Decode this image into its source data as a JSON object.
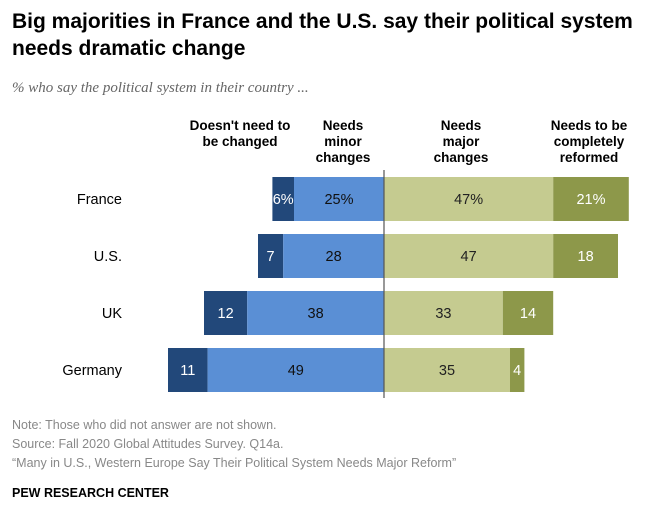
{
  "title": "Big majorities in France and the U.S. say their political system needs dramatic change",
  "subtitle": "% who say the political system in their country ...",
  "chart_data": {
    "type": "bar",
    "orientation": "horizontal-diverging-stacked",
    "categories": [
      "France",
      "U.S.",
      "UK",
      "Germany"
    ],
    "series": [
      {
        "name": "Doesn't need to be changed",
        "side": "left",
        "color": "#22487a",
        "values": [
          6,
          7,
          12,
          11
        ],
        "labels": [
          "6%",
          "7",
          "12",
          "11"
        ]
      },
      {
        "name": "Needs minor changes",
        "side": "left",
        "color": "#5a8fd5",
        "values": [
          25,
          28,
          38,
          49
        ],
        "labels": [
          "25%",
          "28",
          "38",
          "49"
        ]
      },
      {
        "name": "Needs major changes",
        "side": "right",
        "color": "#c5cb90",
        "values": [
          47,
          47,
          33,
          35
        ],
        "labels": [
          "47%",
          "47",
          "33",
          "35"
        ]
      },
      {
        "name": "Needs to be completely reformed",
        "side": "right",
        "color": "#8d984a",
        "values": [
          21,
          18,
          14,
          4
        ],
        "labels": [
          "21%",
          "18",
          "14",
          "4"
        ]
      }
    ]
  },
  "headers": [
    "Doesn't need to be changed",
    "Needs minor changes",
    "Needs major changes",
    "Needs to be completely reformed"
  ],
  "notes": [
    "Note: Those who did not answer are not shown.",
    "Source: Fall 2020 Global Attitudes Survey. Q14a.",
    "“Many in U.S., Western Europe Say Their Political System Needs Major Reform”"
  ],
  "brand": "PEW RESEARCH CENTER"
}
